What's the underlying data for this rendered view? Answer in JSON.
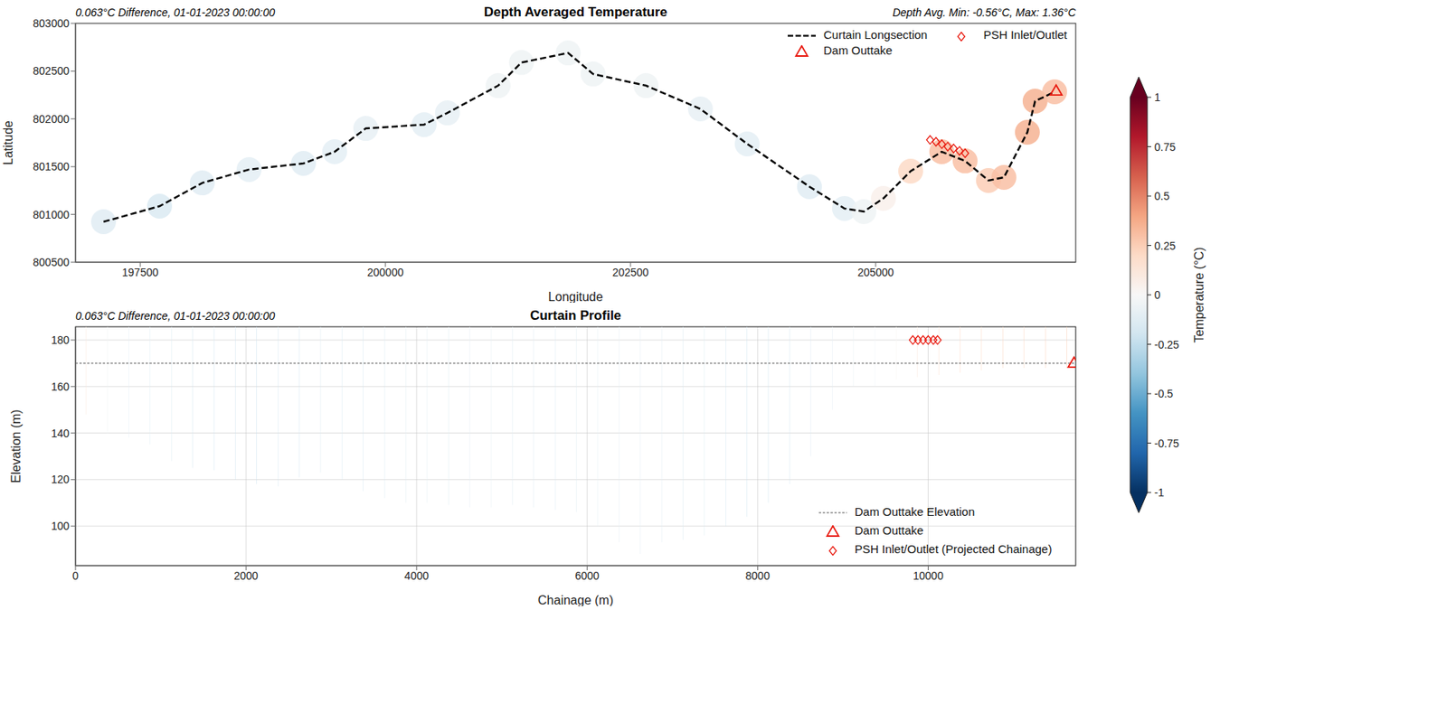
{
  "chart_data": [
    {
      "type": "map",
      "title": "Depth Averaged Temperature",
      "subtitle": "0.063°C Difference, 01-01-2023 00:00:00",
      "annotation": "Depth Avg. Min: -0.56°C, Max: 1.36°C",
      "x_label": "Longitude",
      "y_label": "Latitude",
      "xlim": [
        196840,
        207040
      ],
      "xticks": [
        197500,
        200000,
        202500,
        205000
      ],
      "ylim": [
        800500,
        803000
      ],
      "yticks": [
        800500,
        801000,
        801500,
        802000,
        802500,
        803000
      ],
      "grid": false,
      "legend": "upper right",
      "series": [
        {
          "name": "Curtain Longsection",
          "type": "line",
          "line_style": "dashed",
          "color": "#000000",
          "x": [
            197126,
            197697,
            198133,
            198610,
            199165,
            199483,
            199800,
            200395,
            200633,
            201150,
            201388,
            201864,
            202118,
            202658,
            203213,
            203690,
            204325,
            204682,
            204880,
            205079,
            205357,
            205674,
            205912,
            206150,
            206308,
            206547,
            206626,
            206825
          ],
          "y": [
            800923,
            801086,
            801330,
            801470,
            801534,
            801656,
            801900,
            801940,
            802063,
            802348,
            802590,
            802690,
            802470,
            802348,
            802104,
            801738,
            801290,
            801062,
            801030,
            801168,
            801453,
            801656,
            801560,
            801355,
            801388,
            801860,
            802186,
            802283
          ],
          "temperature": [
            -0.12,
            -0.15,
            -0.12,
            -0.1,
            -0.12,
            -0.1,
            -0.08,
            -0.1,
            -0.08,
            -0.05,
            -0.05,
            -0.05,
            -0.05,
            -0.05,
            -0.08,
            -0.1,
            -0.12,
            -0.1,
            -0.05,
            0.05,
            0.2,
            0.3,
            0.3,
            0.25,
            0.3,
            0.35,
            0.35,
            0.3
          ]
        },
        {
          "name": "Dam Outtake",
          "type": "scatter",
          "marker": "triangle",
          "color": "#e8190e",
          "x": [
            206840
          ],
          "y": [
            802290
          ]
        },
        {
          "name": "PSH Inlet/Outlet",
          "type": "scatter",
          "marker": "diamond",
          "color": "#e8190e",
          "x": [
            205555,
            205615,
            205675,
            205735,
            205795,
            205855,
            205912
          ],
          "y": [
            801780,
            801760,
            801735,
            801710,
            801690,
            801665,
            801640
          ]
        }
      ]
    },
    {
      "type": "curtain",
      "title": "Curtain Profile",
      "subtitle": "0.063°C Difference, 01-01-2023 00:00:00",
      "x_label": "Chainage (m)",
      "y_label": "Elevation (m)",
      "xlim": [
        0,
        11730
      ],
      "xticks": [
        0,
        2000,
        4000,
        6000,
        8000,
        10000
      ],
      "ylim": [
        83,
        185.7
      ],
      "yticks": [
        100,
        120,
        140,
        160,
        180
      ],
      "grid": true,
      "legend": "lower right",
      "columns": {
        "chainage": [
          125,
          375,
          625,
          875,
          1125,
          1375,
          1625,
          1875,
          2125,
          2375,
          2625,
          2875,
          3125,
          3375,
          3625,
          3875,
          4125,
          4375,
          4625,
          4875,
          5125,
          5375,
          5625,
          5875,
          6125,
          6375,
          6625,
          6875,
          7125,
          7375,
          7625,
          7875,
          8125,
          8375,
          8625,
          8875,
          9125,
          9375,
          9625,
          9875,
          10125,
          10375,
          10625,
          10875,
          11125,
          11375,
          11625
        ],
        "bed_elevation": [
          148,
          140,
          138,
          135,
          128,
          125,
          124,
          120,
          118,
          117,
          121,
          123,
          120,
          115,
          112,
          110,
          110,
          109,
          108,
          108,
          109,
          108,
          107,
          106,
          100,
          93,
          88,
          93,
          94,
          96,
          100,
          104,
          110,
          118,
          130,
          150,
          160,
          160,
          163,
          164,
          165,
          166,
          167,
          168,
          168,
          168,
          168
        ],
        "surface_elevation": 185.7,
        "temperature": [
          0.1,
          -0.05,
          -0.1,
          -0.12,
          -0.15,
          -0.18,
          -0.2,
          -0.2,
          -0.22,
          -0.2,
          -0.18,
          -0.15,
          -0.15,
          -0.18,
          -0.15,
          -0.12,
          -0.12,
          -0.12,
          -0.1,
          -0.1,
          -0.12,
          -0.15,
          -0.15,
          -0.12,
          -0.1,
          -0.1,
          -0.1,
          -0.12,
          -0.15,
          -0.15,
          -0.18,
          -0.2,
          -0.22,
          -0.18,
          -0.15,
          -0.1,
          -0.08,
          -0.05,
          0.02,
          0.1,
          0.18,
          0.2,
          0.22,
          0.22,
          0.22,
          0.25,
          0.25
        ]
      },
      "series": [
        {
          "name": "Dam Outtake Elevation",
          "type": "hline",
          "line_style": "dashed",
          "color": "#555555",
          "y": 170
        },
        {
          "name": "Dam Outtake",
          "type": "scatter",
          "marker": "triangle",
          "color": "#e8190e",
          "x": [
            11710
          ],
          "y": [
            170
          ]
        },
        {
          "name": "PSH Inlet/Outlet (Projected Chainage)",
          "type": "scatter",
          "marker": "diamond",
          "color": "#e8190e",
          "x": [
            9820,
            9880,
            9940,
            10000,
            10060,
            10110
          ],
          "y": [
            180,
            180,
            180,
            180,
            180,
            180
          ]
        }
      ]
    }
  ],
  "colorbar": {
    "label": "Temperature (°C)",
    "range": [
      -1,
      1
    ],
    "ticks": [
      -1,
      -0.75,
      -0.5,
      -0.25,
      0,
      0.25,
      0.5,
      0.75,
      1
    ]
  }
}
